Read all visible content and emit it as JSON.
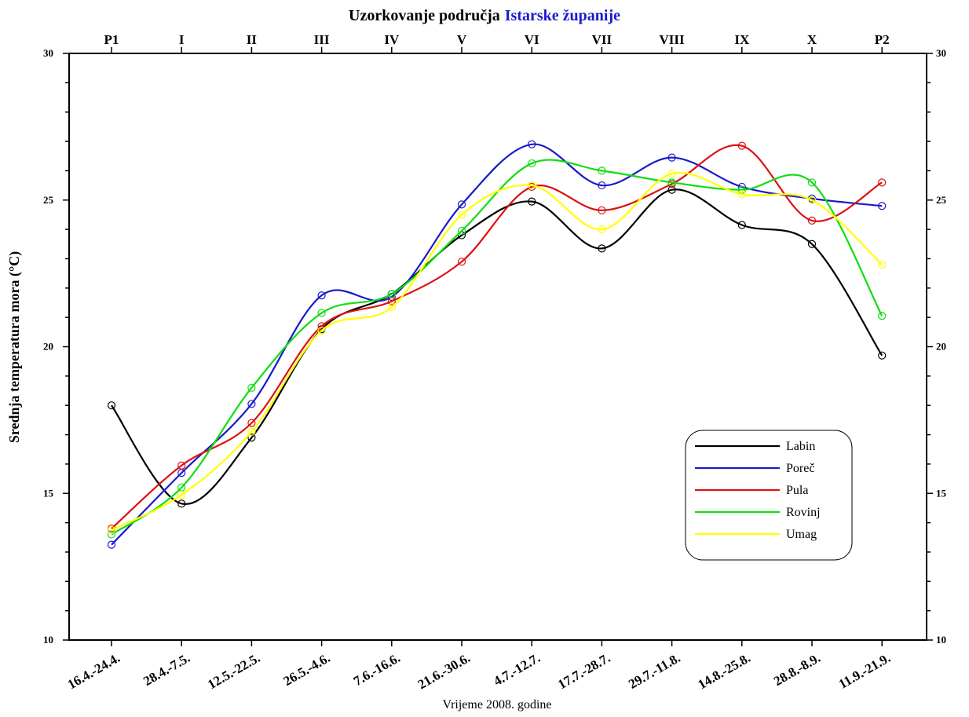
{
  "chart_data": {
    "type": "line",
    "title": "Uzorkovanje područja",
    "title_highlight": "Istarske županije",
    "title_color": "#000000",
    "title_highlight_color": "#1a1acc",
    "xlabel": "Vrijeme 2008. godine",
    "ylabel": "Srednja temperatura mora (°C)",
    "ylim": [
      10,
      30
    ],
    "yticks": [
      10,
      15,
      20,
      25,
      30
    ],
    "categories_top": [
      "P1",
      "I",
      "II",
      "III",
      "IV",
      "V",
      "VI",
      "VII",
      "VIII",
      "IX",
      "X",
      "P2"
    ],
    "categories": [
      "16.4.-24.4.",
      "28.4.-7.5.",
      "12.5.-22.5.",
      "26.5.-4.6.",
      "7.6.-16.6.",
      "21.6.-30.6.",
      "4.7.-12.7.",
      "17.7.-28.7.",
      "29.7.-11.8.",
      "14.8.-25.8.",
      "28.8.-8.9.",
      "11.9.-21.9."
    ],
    "legend_position": "lower-right",
    "grid": false,
    "series": [
      {
        "name": "Labin",
        "color": "#000000",
        "values": [
          18.0,
          14.65,
          16.9,
          20.6,
          21.8,
          23.8,
          24.95,
          23.35,
          25.35,
          24.15,
          23.5,
          19.7
        ]
      },
      {
        "name": "Poreč",
        "color": "#1a1acc",
        "values": [
          13.25,
          15.7,
          18.05,
          21.75,
          21.7,
          24.85,
          26.9,
          25.5,
          26.45,
          25.45,
          25.05,
          24.8
        ]
      },
      {
        "name": "Pula",
        "color": "#dd1111",
        "values": [
          13.8,
          15.95,
          17.4,
          20.7,
          21.55,
          22.9,
          25.45,
          24.65,
          25.55,
          26.85,
          24.3,
          25.6
        ]
      },
      {
        "name": "Rovinj",
        "color": "#11dd11",
        "values": [
          13.6,
          15.2,
          18.6,
          21.15,
          21.8,
          23.95,
          26.25,
          26.0,
          25.6,
          25.35,
          25.6,
          21.05
        ]
      },
      {
        "name": "Umag",
        "color": "#ffff00",
        "values": [
          13.75,
          14.95,
          17.1,
          20.55,
          21.35,
          24.5,
          25.5,
          24.0,
          25.9,
          25.2,
          25.0,
          22.8
        ]
      }
    ]
  }
}
